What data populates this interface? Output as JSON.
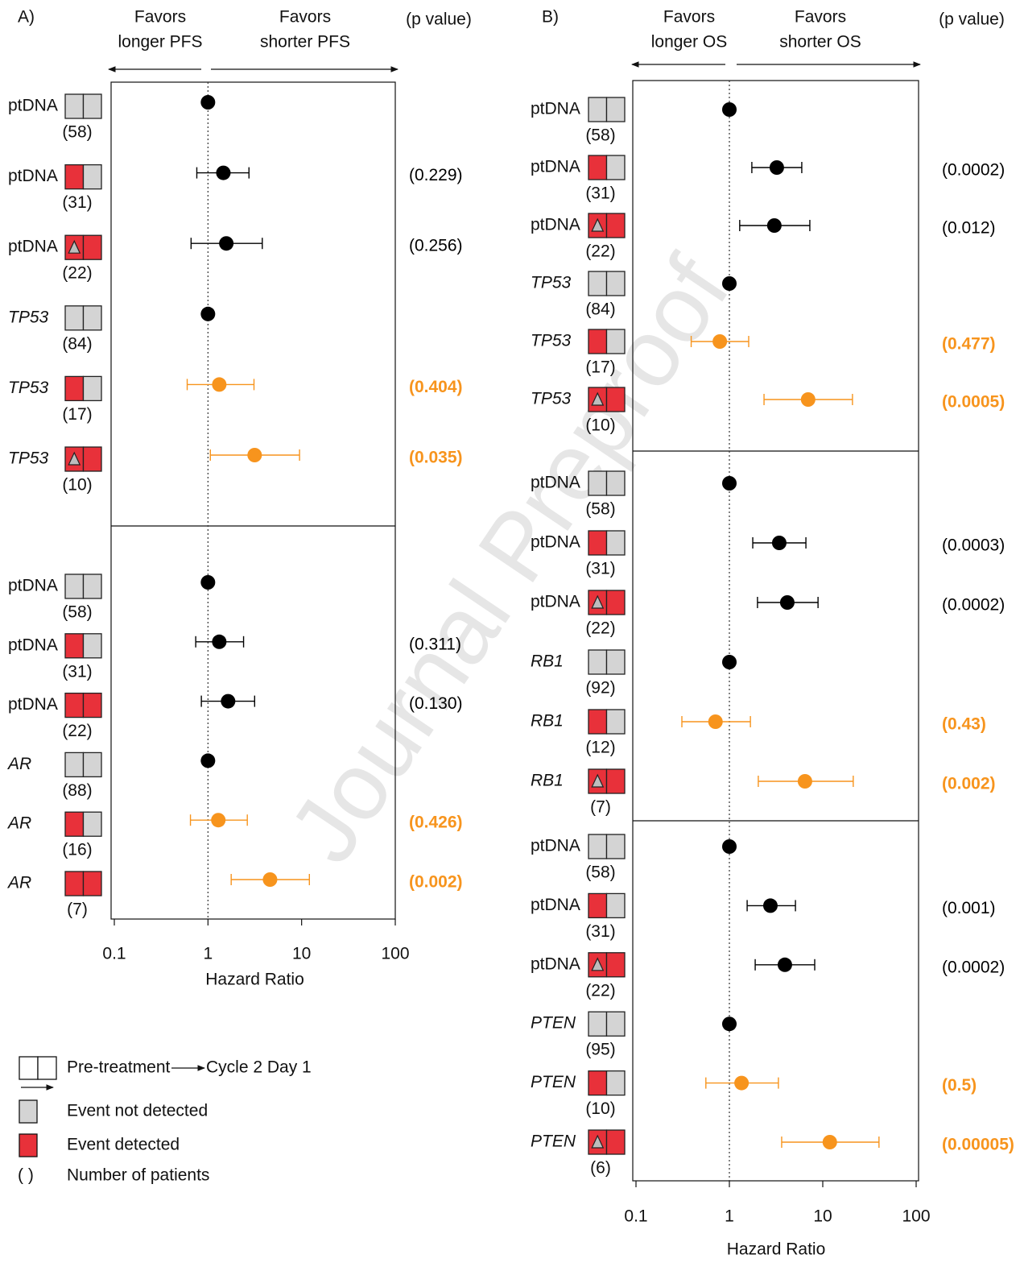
{
  "chart_data": [
    {
      "type": "forest",
      "panel": "A)",
      "left_header": [
        "Favors",
        "longer PFS"
      ],
      "right_header": [
        "Favors",
        "shorter PFS"
      ],
      "p_header": "(p value)",
      "xlabel": "Hazard Ratio",
      "xscale": "log",
      "xlim": [
        0.1,
        100
      ],
      "xticks": [
        0.1,
        1,
        10,
        100
      ],
      "reference": 1,
      "groups": [
        {
          "rows": [
            {
              "label": "ptDNA",
              "italic": false,
              "boxes": [
                "#d4d4d4",
                "#d4d4d4"
              ],
              "triangle": false,
              "n": "(58)",
              "hr": 1,
              "color": "#000000"
            },
            {
              "label": "ptDNA",
              "italic": false,
              "boxes": [
                "#e8313a",
                "#d4d4d4"
              ],
              "triangle": false,
              "n": "(31)",
              "hr": 1.46,
              "ci": [
                0.76,
                2.74
              ],
              "p": "(0.229)",
              "color": "#000000",
              "p_bold": false
            },
            {
              "label": "ptDNA",
              "italic": false,
              "boxes": [
                "#e8313a",
                "#e8313a"
              ],
              "triangle": true,
              "n": "(22)",
              "hr": 1.57,
              "ci": [
                0.66,
                3.8
              ],
              "p": "(0.256)",
              "color": "#000000",
              "p_bold": false
            },
            {
              "label": "TP53",
              "italic": true,
              "boxes": [
                "#d4d4d4",
                "#d4d4d4"
              ],
              "triangle": false,
              "n": "(84)",
              "hr": 1,
              "color": "#000000"
            },
            {
              "label": "TP53",
              "italic": true,
              "boxes": [
                "#e8313a",
                "#d4d4d4"
              ],
              "triangle": false,
              "n": "(17)",
              "hr": 1.32,
              "ci": [
                0.6,
                3.1
              ],
              "p": "(0.404)",
              "color": "#f7941d",
              "p_bold": true
            },
            {
              "label": "TP53",
              "italic": true,
              "boxes": [
                "#e8313a",
                "#e8313a"
              ],
              "triangle": true,
              "n": "(10)",
              "hr": 3.15,
              "ci": [
                1.06,
                9.5
              ],
              "p": "(0.035)",
              "color": "#f7941d",
              "p_bold": true
            }
          ]
        },
        {
          "rows": [
            {
              "label": "ptDNA",
              "italic": false,
              "boxes": [
                "#d4d4d4",
                "#d4d4d4"
              ],
              "triangle": false,
              "n": "(58)",
              "hr": 1,
              "color": "#000000"
            },
            {
              "label": "ptDNA",
              "italic": false,
              "boxes": [
                "#e8313a",
                "#d4d4d4"
              ],
              "triangle": false,
              "n": "(31)",
              "hr": 1.32,
              "ci": [
                0.74,
                2.4
              ],
              "p": "(0.311)",
              "color": "#000000",
              "p_bold": false
            },
            {
              "label": "ptDNA",
              "italic": false,
              "boxes": [
                "#e8313a",
                "#e8313a"
              ],
              "triangle": false,
              "n": "(22)",
              "hr": 1.64,
              "ci": [
                0.85,
                3.15
              ],
              "p": "(0.130)",
              "color": "#000000",
              "p_bold": false
            },
            {
              "label": "AR",
              "italic": true,
              "boxes": [
                "#d4d4d4",
                "#d4d4d4"
              ],
              "triangle": false,
              "n": "(88)",
              "hr": 1,
              "color": "#000000"
            },
            {
              "label": "AR",
              "italic": true,
              "boxes": [
                "#e8313a",
                "#d4d4d4"
              ],
              "triangle": false,
              "n": "(16)",
              "hr": 1.29,
              "ci": [
                0.65,
                2.63
              ],
              "p": "(0.426)",
              "color": "#f7941d",
              "p_bold": true
            },
            {
              "label": "AR",
              "italic": true,
              "boxes": [
                "#e8313a",
                "#e8313a"
              ],
              "triangle": false,
              "n": "(7)",
              "hr": 4.6,
              "ci": [
                1.77,
                12.1
              ],
              "p": "(0.002)",
              "color": "#f7941d",
              "p_bold": true
            }
          ]
        }
      ]
    },
    {
      "type": "forest",
      "panel": "B)",
      "left_header": [
        "Favors",
        "longer OS"
      ],
      "right_header": [
        "Favors",
        "shorter OS"
      ],
      "p_header": "(p value)",
      "xlabel": "Hazard Ratio",
      "xscale": "log",
      "xlim": [
        0.1,
        100
      ],
      "xticks": [
        0.1,
        1,
        10,
        100
      ],
      "reference": 1,
      "groups": [
        {
          "rows": [
            {
              "label": "ptDNA",
              "italic": false,
              "boxes": [
                "#d4d4d4",
                "#d4d4d4"
              ],
              "triangle": false,
              "n": "(58)",
              "hr": 1,
              "color": "#000000"
            },
            {
              "label": "ptDNA",
              "italic": false,
              "boxes": [
                "#e8313a",
                "#d4d4d4"
              ],
              "triangle": false,
              "n": "(31)",
              "hr": 3.22,
              "ci": [
                1.74,
                5.96
              ],
              "p": "(0.0002)",
              "color": "#000000",
              "p_bold": false
            },
            {
              "label": "ptDNA",
              "italic": false,
              "boxes": [
                "#e8313a",
                "#e8313a"
              ],
              "triangle": true,
              "n": "(22)",
              "hr": 3.03,
              "ci": [
                1.29,
                7.27
              ],
              "p": "(0.012)",
              "color": "#000000",
              "p_bold": false
            },
            {
              "label": "TP53",
              "italic": true,
              "boxes": [
                "#d4d4d4",
                "#d4d4d4"
              ],
              "triangle": false,
              "n": "(84)",
              "hr": 1,
              "color": "#000000"
            },
            {
              "label": "TP53",
              "italic": true,
              "boxes": [
                "#e8313a",
                "#d4d4d4"
              ],
              "triangle": false,
              "n": "(17)",
              "hr": 0.79,
              "ci": [
                0.39,
                1.61
              ],
              "p": "(0.477)",
              "color": "#f7941d",
              "p_bold": true
            },
            {
              "label": "TP53",
              "italic": true,
              "boxes": [
                "#e8313a",
                "#e8313a"
              ],
              "triangle": true,
              "n": "(10)",
              "hr": 6.97,
              "ci": [
                2.35,
                20.8
              ],
              "p": "(0.0005)",
              "color": "#f7941d",
              "p_bold": true
            }
          ]
        },
        {
          "rows": [
            {
              "label": "ptDNA",
              "italic": false,
              "boxes": [
                "#d4d4d4",
                "#d4d4d4"
              ],
              "triangle": false,
              "n": "(58)",
              "hr": 1,
              "color": "#000000"
            },
            {
              "label": "ptDNA",
              "italic": false,
              "boxes": [
                "#e8313a",
                "#d4d4d4"
              ],
              "triangle": false,
              "n": "(31)",
              "hr": 3.42,
              "ci": [
                1.78,
                6.6
              ],
              "p": "(0.0003)",
              "color": "#000000",
              "p_bold": false
            },
            {
              "label": "ptDNA",
              "italic": false,
              "boxes": [
                "#e8313a",
                "#e8313a"
              ],
              "triangle": true,
              "n": "(22)",
              "hr": 4.17,
              "ci": [
                2.0,
                8.9
              ],
              "p": "(0.0002)",
              "color": "#000000",
              "p_bold": false
            },
            {
              "label": "RB1",
              "italic": true,
              "boxes": [
                "#d4d4d4",
                "#d4d4d4"
              ],
              "triangle": false,
              "n": "(92)",
              "hr": 1,
              "color": "#000000"
            },
            {
              "label": "RB1",
              "italic": true,
              "boxes": [
                "#e8313a",
                "#d4d4d4"
              ],
              "triangle": false,
              "n": "(12)",
              "hr": 0.71,
              "ci": [
                0.31,
                1.68
              ],
              "p": "(0.43)",
              "color": "#f7941d",
              "p_bold": true
            },
            {
              "label": "RB1",
              "italic": true,
              "boxes": [
                "#e8313a",
                "#e8313a"
              ],
              "triangle": true,
              "n": "(7)",
              "hr": 6.45,
              "ci": [
                2.04,
                21.2
              ],
              "p": "(0.002)",
              "color": "#f7941d",
              "p_bold": true
            }
          ]
        },
        {
          "rows": [
            {
              "label": "ptDNA",
              "italic": false,
              "boxes": [
                "#d4d4d4",
                "#d4d4d4"
              ],
              "triangle": false,
              "n": "(58)",
              "hr": 1,
              "color": "#000000"
            },
            {
              "label": "ptDNA",
              "italic": false,
              "boxes": [
                "#e8313a",
                "#d4d4d4"
              ],
              "triangle": false,
              "n": "(31)",
              "hr": 2.75,
              "ci": [
                1.55,
                5.1
              ],
              "p": "(0.001)",
              "color": "#000000",
              "p_bold": false
            },
            {
              "label": "ptDNA",
              "italic": false,
              "boxes": [
                "#e8313a",
                "#e8313a"
              ],
              "triangle": true,
              "n": "(22)",
              "hr": 3.93,
              "ci": [
                1.89,
                8.2
              ],
              "p": "(0.0002)",
              "color": "#000000",
              "p_bold": false
            },
            {
              "label": "PTEN",
              "italic": true,
              "boxes": [
                "#d4d4d4",
                "#d4d4d4"
              ],
              "triangle": false,
              "n": "(95)",
              "hr": 1,
              "color": "#000000"
            },
            {
              "label": "PTEN",
              "italic": true,
              "boxes": [
                "#e8313a",
                "#d4d4d4"
              ],
              "triangle": false,
              "n": "(10)",
              "hr": 1.35,
              "ci": [
                0.56,
                3.35
              ],
              "p": "(0.5)",
              "color": "#f7941d",
              "p_bold": true
            },
            {
              "label": "PTEN",
              "italic": true,
              "boxes": [
                "#e8313a",
                "#e8313a"
              ],
              "triangle": true,
              "n": "(6)",
              "hr": 11.9,
              "ci": [
                3.63,
                40
              ],
              "p": "(0.00005)",
              "color": "#f7941d",
              "p_bold": true
            }
          ]
        }
      ]
    }
  ],
  "legend": {
    "pre": "Pre-treatment",
    "post": "Cycle 2 Day 1",
    "items": [
      {
        "color": "#d4d4d4",
        "label": "Event not detected"
      },
      {
        "color": "#e8313a",
        "label": "Event detected"
      }
    ],
    "paren": "( )",
    "paren_label": "Number of patients"
  },
  "watermark": "Journal Preproof"
}
